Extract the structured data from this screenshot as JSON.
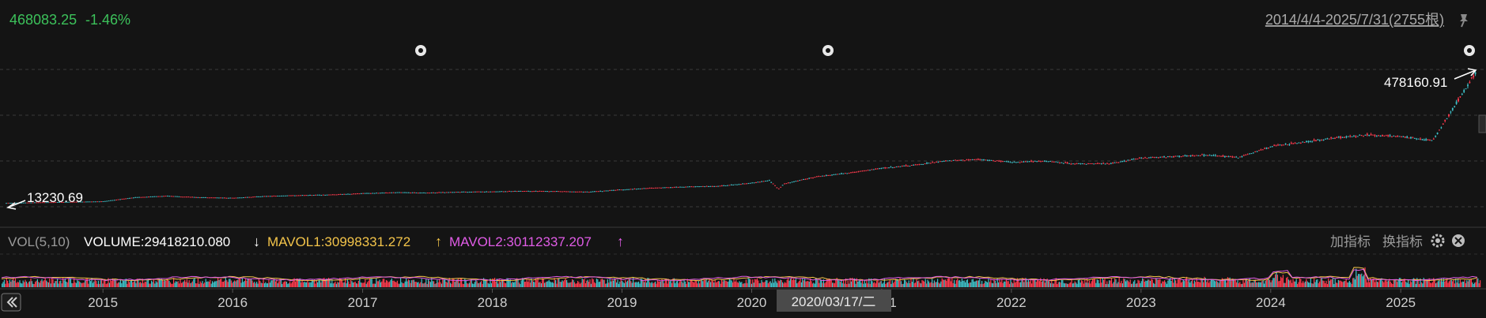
{
  "header": {
    "last_value": "468083.25",
    "change": "-1.46%",
    "range_label": "2014/4/4-2025/7/31(2755根)"
  },
  "main_chart": {
    "max_label": "478160.91",
    "min_label": "13230.69"
  },
  "volume_panel": {
    "label": "VOL(5,10)",
    "volume": "VOLUME:29418210.080",
    "volume_arrow": "↓",
    "mavol1": "MAVOL1:30998331.272",
    "mavol1_arrow": "↑",
    "mavol2": "MAVOL2:30112337.207",
    "mavol2_arrow": "↑",
    "add_indicator": "加指标",
    "switch_indicator": "换指标"
  },
  "crosshair_date": "2020/03/17/二",
  "colors": {
    "up": "#ff3b4e",
    "down": "#3fc1c9",
    "positive_text": "#3cc15a",
    "mavol1": "#f3c44a",
    "mavol2": "#e05ce6"
  },
  "chart_data": {
    "type": "candlestick",
    "x": [
      "2014-04-04",
      "2014-07-01",
      "2014-10-01",
      "2015-01-02",
      "2015-04-01",
      "2015-07-01",
      "2015-10-01",
      "2016-01-04",
      "2016-04-01",
      "2016-07-01",
      "2016-10-03",
      "2017-01-03",
      "2017-04-03",
      "2017-07-03",
      "2017-10-02",
      "2018-01-02",
      "2018-04-02",
      "2018-07-02",
      "2018-10-01",
      "2019-01-02",
      "2019-04-01",
      "2019-07-01",
      "2019-10-01",
      "2020-01-02",
      "2020-02-20",
      "2020-03-17",
      "2020-04-01",
      "2020-07-01",
      "2020-10-01",
      "2021-01-04",
      "2021-04-01",
      "2021-07-01",
      "2021-10-01",
      "2022-01-03",
      "2022-04-01",
      "2022-07-01",
      "2022-10-03",
      "2023-01-03",
      "2023-04-03",
      "2023-07-03",
      "2023-10-02",
      "2024-01-02",
      "2024-04-01",
      "2024-07-01",
      "2024-10-01",
      "2025-01-02",
      "2025-04-01",
      "2025-07-31"
    ],
    "y": [
      13230.69,
      15500,
      17000,
      19000,
      33000,
      38000,
      33000,
      31000,
      37000,
      40000,
      42000,
      47000,
      50000,
      49000,
      52000,
      53000,
      55000,
      54000,
      52000,
      60000,
      66000,
      70000,
      72000,
      83000,
      92000,
      62000,
      80000,
      105000,
      118000,
      135000,
      145000,
      160000,
      165000,
      155000,
      160000,
      150000,
      150000,
      170000,
      175000,
      180000,
      172000,
      210000,
      225000,
      240000,
      250000,
      245000,
      230000,
      468083.25
    ],
    "max": 478160.91,
    "min": 13230.69,
    "x_ticks": [
      "2015",
      "2016",
      "2017",
      "2018",
      "2019",
      "2020",
      "2021",
      "2022",
      "2023",
      "2024",
      "2025"
    ],
    "volume_ma": {
      "VOLUME": 29418210.08,
      "MAVOL1": 30998331.272,
      "MAVOL2": 30112337.207
    }
  }
}
